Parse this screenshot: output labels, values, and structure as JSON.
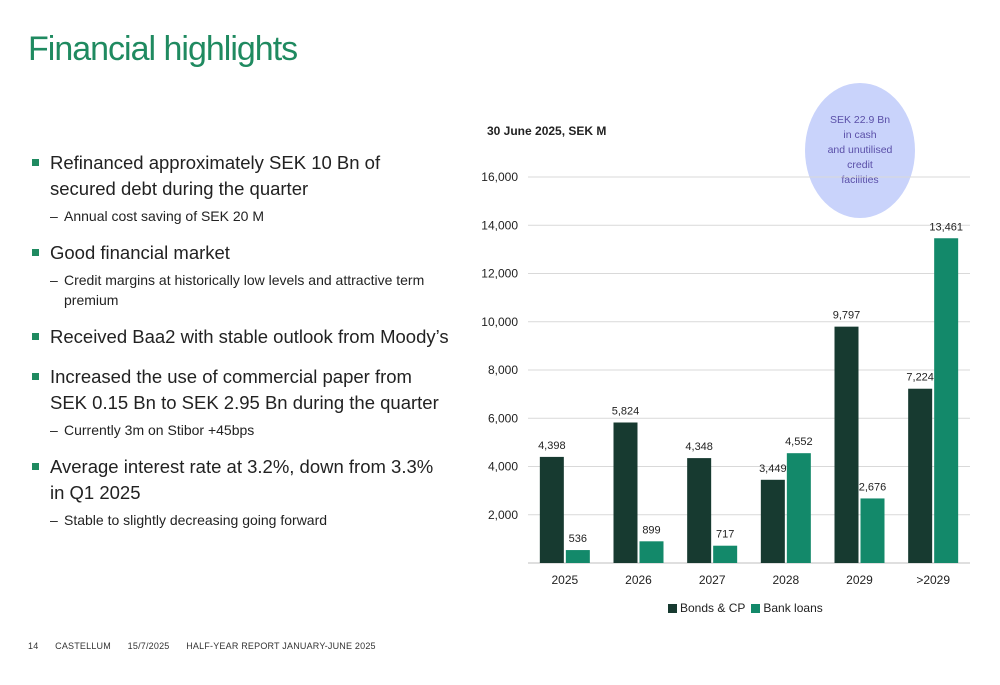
{
  "page": {
    "title": "Financial highlights"
  },
  "bullets": [
    {
      "text": "Refinanced approximately SEK 10 Bn of secured debt during the quarter",
      "subs": [
        "Annual cost saving of SEK 20 M"
      ]
    },
    {
      "text": "Good financial market",
      "subs": [
        "Credit margins at historically low levels and attractive term premium"
      ]
    },
    {
      "text": "Received Baa2 with stable outlook from Moody’s",
      "subs": []
    },
    {
      "text": "Increased the use of commercial paper from SEK 0.15 Bn to SEK 2.95 Bn during the quarter",
      "subs": [
        "Currently 3m on Stibor +45bps"
      ]
    },
    {
      "text": "Average interest rate at 3.2%, down from 3.3% in Q1 2025",
      "subs": [
        "Stable to slightly decreasing going forward"
      ]
    }
  ],
  "footer": {
    "page_number": "14",
    "company": "CASTELLUM",
    "date": "15/7/2025",
    "report": "HALF-YEAR REPORT JANUARY-JUNE 2025"
  },
  "callout": {
    "text": "SEK 22.9 Bn\nin cash\nand unutilised\ncredit\nfacilities"
  },
  "chart_data": {
    "type": "bar",
    "title": "30 June 2025, SEK M",
    "categories": [
      "2025",
      "2026",
      "2027",
      "2028",
      "2029",
      ">2029"
    ],
    "series": [
      {
        "name": "Bonds & CP",
        "color": "#173a30",
        "values": [
          4398,
          5824,
          4348,
          3449,
          9797,
          7224
        ],
        "labels": [
          "4,398",
          "5,824",
          "4,348",
          "3,449",
          "9,797",
          "7,224"
        ]
      },
      {
        "name": "Bank loans",
        "color": "#13896a",
        "values": [
          536,
          899,
          717,
          4552,
          2676,
          13461
        ],
        "labels": [
          "536",
          "899",
          "717",
          "4,552",
          "2,676",
          "13,461"
        ]
      }
    ],
    "yticks": [
      "2,000",
      "4,000",
      "6,000",
      "8,000",
      "10,000",
      "12,000",
      "14,000",
      "16,000"
    ],
    "ytick_values": [
      2000,
      4000,
      6000,
      8000,
      10000,
      12000,
      14000,
      16000
    ],
    "ylim": [
      0,
      16000
    ],
    "grid": true,
    "legend": "bottom"
  }
}
